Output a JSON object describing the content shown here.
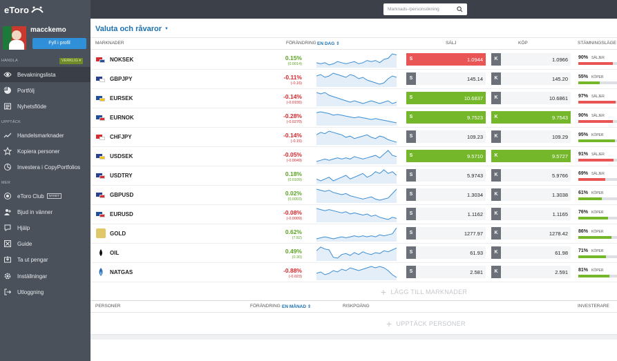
{
  "app": {
    "logo_text": "eToro"
  },
  "user": {
    "name": "macckemo",
    "fill_profile_label": "Fyll i profil"
  },
  "sidebar": {
    "section_trade": "HANDLA",
    "account_mode": "VERKLIG ▾",
    "section_discover": "UPPTÄCK",
    "section_more": "MER",
    "items": [
      {
        "label": "Bevakningslista",
        "icon": "eye-icon"
      },
      {
        "label": "Portfölj",
        "icon": "pie-chart-icon"
      },
      {
        "label": "Nyhetsflöde",
        "icon": "newspaper-icon"
      },
      {
        "label": "Handelsmarknader",
        "icon": "trend-line-icon"
      },
      {
        "label": "Kopiera personer",
        "icon": "star-icon"
      },
      {
        "label": "Investera i CopyPortfolios",
        "icon": "portfolio-icon"
      },
      {
        "label": "eToro Club",
        "icon": "club-badge-icon",
        "badge": "NYHET"
      },
      {
        "label": "Bjud in vänner",
        "icon": "invite-icon"
      },
      {
        "label": "Hjälp",
        "icon": "help-icon"
      },
      {
        "label": "Guide",
        "icon": "guide-icon"
      },
      {
        "label": "Ta ut pengar",
        "icon": "withdraw-icon"
      },
      {
        "label": "Inställningar",
        "icon": "gear-icon"
      },
      {
        "label": "Utloggning",
        "icon": "logout-icon"
      }
    ]
  },
  "search": {
    "placeholder": "Marknads-/personsökning"
  },
  "watchlist": {
    "title": "Valuta och råvaror",
    "headers": {
      "markets": "MARKNADER",
      "change": "FÖRÄNDRING",
      "change_period": "EN DAG ⇕",
      "sell": "SÄLJ",
      "buy": "KÖP",
      "sentiment": "STÄMNINGSLÄGE"
    },
    "rows": [
      {
        "symbol": "NOKSEK",
        "change": "0.15%",
        "change_abs": "(0.0014)",
        "dir": "pos",
        "sell": "1.0944",
        "buy": "1.0966",
        "sell_state": "red",
        "buy_state": "",
        "sentiment_pct": "90%",
        "sentiment_label": "SÄLJER",
        "sentiment_side": "sell",
        "sentiment_value": 90,
        "flag": "no-se",
        "trend": [
          12,
          13,
          12,
          14,
          13,
          11,
          12,
          13,
          12,
          11,
          13,
          12,
          10,
          11,
          10,
          12,
          9,
          8,
          4,
          5
        ]
      },
      {
        "symbol": "GBPJPY",
        "change": "-0.11%",
        "change_abs": "(-0.16)",
        "dir": "neg",
        "sell": "145.14",
        "buy": "145.20",
        "sell_state": "",
        "buy_state": "",
        "sentiment_pct": "55%",
        "sentiment_label": "KÖPER",
        "sentiment_side": "buy",
        "sentiment_value": 55,
        "flag": "gb-jp",
        "trend": [
          10,
          9,
          11,
          10,
          8,
          9,
          10,
          11,
          9,
          10,
          12,
          11,
          13,
          14,
          15,
          16,
          15,
          12,
          10,
          11
        ]
      },
      {
        "symbol": "EURSEK",
        "change": "-0.14%",
        "change_abs": "(-0.0155)",
        "dir": "neg",
        "sell": "10.6837",
        "buy": "10.6861",
        "sell_state": "green",
        "buy_state": "",
        "sentiment_pct": "97%",
        "sentiment_label": "SÄLJER",
        "sentiment_side": "sell",
        "sentiment_value": 97,
        "flag": "eu-se",
        "trend": [
          6,
          7,
          6,
          8,
          9,
          10,
          11,
          12,
          13,
          12,
          13,
          14,
          13,
          12,
          13,
          14,
          13,
          12,
          14,
          13
        ]
      },
      {
        "symbol": "EURNOK",
        "change": "-0.28%",
        "change_abs": "(-0.0270)",
        "dir": "neg",
        "sell": "9.7523",
        "buy": "9.7543",
        "sell_state": "green",
        "buy_state": "green",
        "sentiment_pct": "90%",
        "sentiment_label": "SÄLJER",
        "sentiment_side": "sell",
        "sentiment_value": 90,
        "flag": "eu-no",
        "trend": [
          6,
          5,
          6,
          7,
          9,
          8,
          9,
          10,
          11,
          12,
          11,
          12,
          13,
          14,
          13,
          14,
          15,
          16,
          17,
          18
        ]
      },
      {
        "symbol": "CHFJPY",
        "change": "-0.14%",
        "change_abs": "(-0.15)",
        "dir": "neg",
        "sell": "109.23",
        "buy": "109.29",
        "sell_state": "",
        "buy_state": "",
        "sentiment_pct": "95%",
        "sentiment_label": "KÖPER",
        "sentiment_side": "buy",
        "sentiment_value": 95,
        "flag": "ch-jp",
        "trend": [
          10,
          8,
          9,
          7,
          8,
          9,
          10,
          12,
          11,
          13,
          12,
          11,
          10,
          12,
          13,
          11,
          12,
          14,
          15,
          16
        ]
      },
      {
        "symbol": "USDSEK",
        "change": "-0.05%",
        "change_abs": "(-0.0049)",
        "dir": "neg",
        "sell": "9.5710",
        "buy": "9.5727",
        "sell_state": "green",
        "buy_state": "green",
        "sentiment_pct": "91%",
        "sentiment_label": "SÄLJER",
        "sentiment_side": "sell",
        "sentiment_value": 91,
        "flag": "us-se",
        "trend": [
          14,
          13,
          12,
          13,
          12,
          11,
          12,
          11,
          12,
          10,
          11,
          12,
          11,
          10,
          9,
          11,
          8,
          5,
          9,
          10
        ]
      },
      {
        "symbol": "USDTRY",
        "change": "0.18%",
        "change_abs": "(0.0109)",
        "dir": "pos",
        "sell": "5.9743",
        "buy": "5.9766",
        "sell_state": "",
        "buy_state": "",
        "sentiment_pct": "69%",
        "sentiment_label": "SÄLJER",
        "sentiment_side": "sell",
        "sentiment_value": 69,
        "flag": "us-tr",
        "trend": [
          12,
          13,
          12,
          11,
          13,
          12,
          11,
          10,
          12,
          11,
          10,
          9,
          11,
          10,
          8,
          9,
          7,
          9,
          8,
          10
        ]
      },
      {
        "symbol": "GBPUSD",
        "change": "0.02%",
        "change_abs": "(0.0003)",
        "dir": "pos",
        "sell": "1.3034",
        "buy": "1.3038",
        "sell_state": "",
        "buy_state": "",
        "sentiment_pct": "61%",
        "sentiment_label": "KÖPER",
        "sentiment_side": "buy",
        "sentiment_value": 61,
        "flag": "gb-us",
        "trend": [
          8,
          9,
          10,
          9,
          11,
          12,
          13,
          12,
          14,
          15,
          16,
          17,
          16,
          15,
          17,
          18,
          17,
          16,
          12,
          8
        ]
      },
      {
        "symbol": "EURUSD",
        "change": "-0.08%",
        "change_abs": "(-0.0009)",
        "dir": "neg",
        "sell": "1.1162",
        "buy": "1.1165",
        "sell_state": "",
        "buy_state": "",
        "sentiment_pct": "76%",
        "sentiment_label": "KÖPER",
        "sentiment_side": "buy",
        "sentiment_value": 76,
        "flag": "eu-us",
        "trend": [
          7,
          8,
          9,
          8,
          9,
          10,
          11,
          10,
          12,
          11,
          12,
          13,
          12,
          14,
          13,
          15,
          16,
          17,
          15,
          16
        ]
      },
      {
        "symbol": "GOLD",
        "change": "0.62%",
        "change_abs": "(7.82)",
        "dir": "pos",
        "sell": "1277.97",
        "buy": "1278.42",
        "sell_state": "",
        "buy_state": "",
        "sentiment_pct": "86%",
        "sentiment_label": "KÖPER",
        "sentiment_side": "buy",
        "sentiment_value": 86,
        "flag": "gold",
        "trend": [
          14,
          13,
          12,
          13,
          14,
          13,
          12,
          13,
          12,
          11,
          12,
          11,
          12,
          11,
          12,
          10,
          11,
          10,
          9,
          3
        ]
      },
      {
        "symbol": "OIL",
        "change": "0.49%",
        "change_abs": "(0.30)",
        "dir": "pos",
        "sell": "61.93",
        "buy": "61.98",
        "sell_state": "",
        "buy_state": "",
        "sentiment_pct": "71%",
        "sentiment_label": "KÖPER",
        "sentiment_side": "buy",
        "sentiment_value": 71,
        "flag": "oil",
        "trend": [
          10,
          6,
          8,
          9,
          17,
          18,
          14,
          13,
          15,
          12,
          14,
          11,
          13,
          14,
          12,
          13,
          10,
          11,
          9,
          7
        ]
      },
      {
        "symbol": "NATGAS",
        "change": "-0.88%",
        "change_abs": "(-0.023)",
        "dir": "neg",
        "sell": "2.581",
        "buy": "2.591",
        "sell_state": "",
        "buy_state": "",
        "sentiment_pct": "81%",
        "sentiment_label": "KÖPER",
        "sentiment_side": "buy",
        "sentiment_value": 81,
        "flag": "natgas",
        "trend": [
          12,
          11,
          13,
          12,
          10,
          11,
          9,
          10,
          8,
          9,
          10,
          9,
          8,
          7,
          8,
          7,
          8,
          10,
          13,
          15
        ]
      }
    ],
    "add_markets_label": "LÄGG TILL MARKNADER"
  },
  "people": {
    "headers": {
      "people": "PERSONER",
      "change": "FÖRÄNDRING",
      "change_period": "EN MÅNAD ⇕",
      "risk": "RISKPOÄNG",
      "invest": "INVESTERARE"
    },
    "discover_label": "UPPTÄCK PERSONER"
  },
  "colors": {
    "sell_red": "#e95454",
    "buy_green": "#74b72a",
    "accent_blue": "#1a6fb0",
    "sidebar": "#4b515b"
  }
}
